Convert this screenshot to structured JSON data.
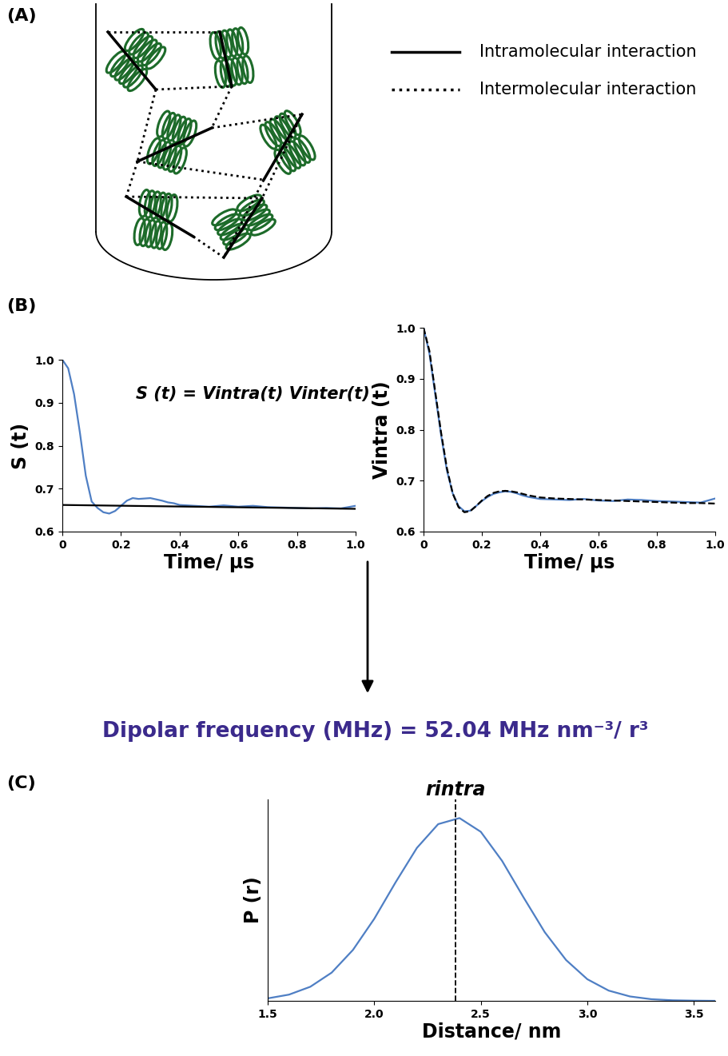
{
  "panel_labels": [
    "(A)",
    "(B)",
    "(C)"
  ],
  "diagram": {
    "legend": [
      {
        "label": "Intramolecular interaction",
        "line_style": "solid"
      },
      {
        "label": "Intermolecular interaction",
        "line_style": "dotted"
      }
    ]
  },
  "formula": {
    "text": "Dipolar frequency (MHz) = 52.04 MHz nm⁻³/ r³",
    "color": "#3b2a8c"
  },
  "chart_data": [
    {
      "type": "line",
      "y_label": "S (t)",
      "x_label": "Time/ µs",
      "annotation": "S (t) = Vintra(t) Vinter(t)",
      "xlim": [
        0,
        1.0
      ],
      "ylim": [
        0.6,
        1.0
      ],
      "xticks": [
        0,
        0.2,
        0.4,
        0.6,
        0.8,
        1.0
      ],
      "yticks": [
        0.6,
        0.7,
        0.8,
        0.9,
        1.0
      ],
      "series": [
        {
          "color": "#4f7fc4",
          "line_style": "solid",
          "x": [
            0,
            0.02,
            0.04,
            0.06,
            0.08,
            0.1,
            0.12,
            0.14,
            0.16,
            0.18,
            0.2,
            0.22,
            0.24,
            0.26,
            0.28,
            0.3,
            0.32,
            0.34,
            0.36,
            0.38,
            0.4,
            0.45,
            0.5,
            0.55,
            0.6,
            0.65,
            0.7,
            0.75,
            0.8,
            0.85,
            0.9,
            0.95,
            1.0
          ],
          "values": [
            1.0,
            0.98,
            0.92,
            0.83,
            0.73,
            0.67,
            0.655,
            0.645,
            0.642,
            0.648,
            0.66,
            0.672,
            0.678,
            0.676,
            0.677,
            0.678,
            0.675,
            0.672,
            0.668,
            0.666,
            0.662,
            0.66,
            0.658,
            0.661,
            0.658,
            0.66,
            0.657,
            0.656,
            0.655,
            0.654,
            0.655,
            0.654,
            0.66
          ]
        },
        {
          "color": "#000000",
          "line_style": "solid",
          "x": [
            0,
            1.0
          ],
          "values": [
            0.662,
            0.653
          ]
        }
      ]
    },
    {
      "type": "line",
      "y_label": "Vintra (t)",
      "x_label": "Time/ µs",
      "xlim": [
        0,
        1.0
      ],
      "ylim": [
        0.6,
        1.0
      ],
      "xticks": [
        0,
        0.2,
        0.4,
        0.6,
        0.8,
        1.0
      ],
      "yticks": [
        0.6,
        0.7,
        0.8,
        0.9,
        1.0
      ],
      "series": [
        {
          "color": "#4f7fc4",
          "line_style": "solid",
          "x": [
            0,
            0.02,
            0.04,
            0.06,
            0.08,
            0.1,
            0.12,
            0.14,
            0.16,
            0.18,
            0.2,
            0.22,
            0.24,
            0.26,
            0.28,
            0.3,
            0.32,
            0.34,
            0.36,
            0.38,
            0.4,
            0.45,
            0.5,
            0.55,
            0.6,
            0.65,
            0.7,
            0.75,
            0.8,
            0.85,
            0.9,
            0.95,
            1.0
          ],
          "values": [
            1.0,
            0.95,
            0.87,
            0.79,
            0.72,
            0.675,
            0.65,
            0.64,
            0.641,
            0.65,
            0.66,
            0.668,
            0.674,
            0.677,
            0.679,
            0.678,
            0.675,
            0.671,
            0.668,
            0.666,
            0.664,
            0.663,
            0.662,
            0.664,
            0.661,
            0.66,
            0.663,
            0.662,
            0.66,
            0.659,
            0.658,
            0.657,
            0.665
          ]
        },
        {
          "color": "#000000",
          "line_style": "dashed",
          "x": [
            0,
            0.02,
            0.04,
            0.06,
            0.08,
            0.1,
            0.12,
            0.14,
            0.16,
            0.18,
            0.2,
            0.22,
            0.24,
            0.26,
            0.28,
            0.3,
            0.32,
            0.34,
            0.36,
            0.38,
            0.4,
            0.45,
            0.5,
            0.55,
            0.6,
            0.65,
            0.7,
            0.75,
            0.8,
            0.85,
            0.9,
            0.95,
            1.0
          ],
          "values": [
            1.0,
            0.955,
            0.875,
            0.795,
            0.725,
            0.675,
            0.648,
            0.638,
            0.64,
            0.65,
            0.661,
            0.67,
            0.676,
            0.679,
            0.68,
            0.679,
            0.677,
            0.674,
            0.671,
            0.669,
            0.667,
            0.665,
            0.664,
            0.663,
            0.662,
            0.661,
            0.66,
            0.659,
            0.658,
            0.657,
            0.656,
            0.656,
            0.655
          ]
        }
      ]
    },
    {
      "type": "line",
      "y_label": "P (r)",
      "x_label": "Distance/ nm",
      "tick_labels": "x",
      "xlim": [
        1.5,
        3.6
      ],
      "ylim": [
        0,
        1.1
      ],
      "xticks": [
        1.5,
        2.0,
        2.5,
        3.0,
        3.5
      ],
      "annotation": {
        "text": "rintra",
        "x": 2.38
      },
      "series": [
        {
          "color": "#4f7fc4",
          "line_style": "solid",
          "x": [
            1.5,
            1.6,
            1.7,
            1.8,
            1.9,
            2.0,
            2.1,
            2.2,
            2.3,
            2.4,
            2.5,
            2.6,
            2.7,
            2.8,
            2.9,
            3.0,
            3.1,
            3.2,
            3.3,
            3.4,
            3.5,
            3.6
          ],
          "values": [
            0.0135,
            0.034,
            0.077,
            0.154,
            0.278,
            0.448,
            0.647,
            0.835,
            0.965,
            0.998,
            0.923,
            0.764,
            0.566,
            0.375,
            0.223,
            0.118,
            0.056,
            0.024,
            0.009,
            0.003,
            0.001,
            0.0
          ]
        }
      ]
    }
  ]
}
